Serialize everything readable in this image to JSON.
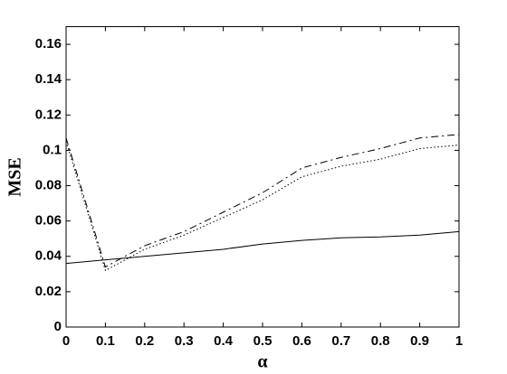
{
  "chart_data": {
    "type": "line",
    "x_label": "α",
    "y_label": "MSE",
    "x": [
      0,
      0.1,
      0.2,
      0.3,
      0.4,
      0.5,
      0.6,
      0.7,
      0.8,
      0.9,
      1
    ],
    "series": [
      {
        "color": "#000000",
        "style": "solid",
        "values": [
          0.036,
          0.038,
          0.04,
          0.042,
          0.044,
          0.047,
          0.049,
          0.0505,
          0.051,
          0.052,
          0.054
        ]
      },
      {
        "color": "#000000",
        "style": "dashed",
        "values": [
          0.107,
          0.034,
          0.046,
          0.054,
          0.065,
          0.076,
          0.09,
          0.096,
          0.101,
          0.107,
          0.109
        ]
      },
      {
        "color": "#000000",
        "style": "dotted",
        "values": [
          0.105,
          0.032,
          0.044,
          0.052,
          0.062,
          0.072,
          0.085,
          0.091,
          0.095,
          0.101,
          0.103
        ]
      }
    ],
    "xlim": [
      0,
      1
    ],
    "xticks": [
      0,
      0.1,
      0.2,
      0.3,
      0.4,
      0.5,
      0.6,
      0.7,
      0.8,
      0.9,
      1
    ],
    "ylim": [
      0,
      0.17
    ],
    "yticks": [
      0,
      0.02,
      0.04,
      0.06,
      0.08,
      0.1,
      0.12,
      0.14,
      0.16
    ],
    "grid": false
  }
}
